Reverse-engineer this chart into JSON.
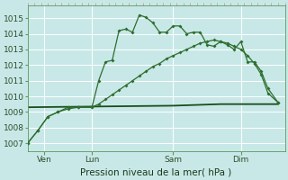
{
  "background_color": "#c8e8e8",
  "grid_color": "#b0d0d0",
  "line_color_main": "#2d6e2d",
  "line_color_smooth": "#2d6e2d",
  "line_color_flat": "#1a4d1a",
  "xlabel": "Pression niveau de la mer( hPa )",
  "ylim": [
    1006.5,
    1015.8
  ],
  "xlim": [
    0,
    76
  ],
  "yticks": [
    1007,
    1008,
    1009,
    1010,
    1011,
    1012,
    1013,
    1014,
    1015
  ],
  "day_labels": [
    "Ven",
    "Lun",
    "Sam",
    "Dim"
  ],
  "day_positions": [
    5,
    19,
    43,
    63
  ],
  "series1_x": [
    0,
    3,
    6,
    9,
    12,
    15,
    19,
    21,
    23,
    25,
    27,
    29,
    31,
    33,
    35,
    37,
    39,
    41,
    43,
    45,
    47,
    49,
    51,
    53,
    55,
    57,
    59,
    61,
    63,
    65,
    67,
    69,
    71,
    74
  ],
  "series1_y": [
    1007.0,
    1007.8,
    1008.7,
    1009.0,
    1009.3,
    1009.3,
    1009.3,
    1011.0,
    1012.2,
    1012.3,
    1014.2,
    1014.3,
    1014.1,
    1015.2,
    1015.05,
    1014.7,
    1014.1,
    1014.1,
    1014.5,
    1014.5,
    1014.0,
    1014.1,
    1014.1,
    1013.3,
    1013.2,
    1013.5,
    1013.3,
    1013.0,
    1013.5,
    1012.2,
    1012.2,
    1011.6,
    1010.5,
    1009.6
  ],
  "series2_x": [
    0,
    3,
    6,
    9,
    12,
    15,
    19,
    21,
    23,
    25,
    27,
    29,
    31,
    33,
    35,
    37,
    39,
    41,
    43,
    45,
    47,
    49,
    51,
    53,
    55,
    57,
    59,
    61,
    63,
    65,
    67,
    69,
    71,
    74
  ],
  "series2_y": [
    1007.0,
    1007.8,
    1008.7,
    1009.0,
    1009.2,
    1009.3,
    1009.3,
    1009.5,
    1009.8,
    1010.1,
    1010.4,
    1010.7,
    1011.0,
    1011.3,
    1011.6,
    1011.9,
    1012.1,
    1012.4,
    1012.6,
    1012.8,
    1013.0,
    1013.2,
    1013.4,
    1013.5,
    1013.6,
    1013.5,
    1013.4,
    1013.2,
    1013.0,
    1012.6,
    1012.1,
    1011.4,
    1010.2,
    1009.6
  ],
  "series3_x": [
    0,
    43,
    57,
    74
  ],
  "series3_y": [
    1009.3,
    1009.4,
    1009.5,
    1009.5
  ]
}
